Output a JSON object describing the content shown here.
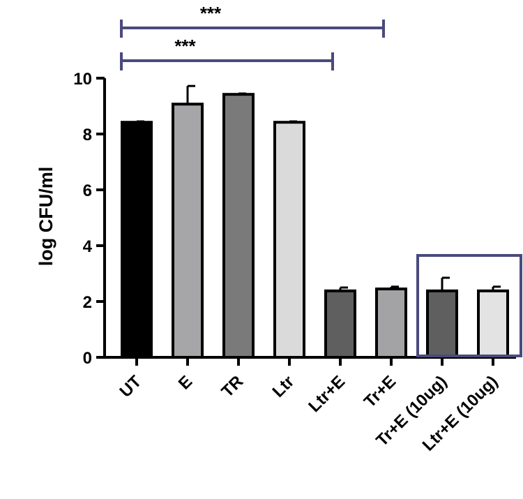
{
  "chart_data": {
    "type": "bar",
    "ylabel": "log CFU/ml",
    "xlabel": "",
    "title": "",
    "ylim": [
      0,
      10
    ],
    "yticks": [
      0,
      2,
      4,
      6,
      8,
      10
    ],
    "categories": [
      "UT",
      "E",
      "TR",
      "Ltr",
      "Ltr+E",
      "Tr+E",
      "Tr+E (10ug)",
      "Ltr+E (10ug)"
    ],
    "values": [
      8.42,
      9.07,
      9.42,
      8.42,
      2.38,
      2.45,
      2.38,
      2.38
    ],
    "errors": [
      0.03,
      0.65,
      0.03,
      0.03,
      0.12,
      0.08,
      0.47,
      0.15
    ],
    "colors": [
      "#000000",
      "#a6a6a8",
      "#7a7a7a",
      "#dadada",
      "#5f5f5f",
      "#a3a3a5",
      "#5f5f5f",
      "#e3e3e3"
    ],
    "annotations": [
      {
        "label": "***",
        "from": "UT",
        "to": "Tr+E",
        "color": "#4a4a7e"
      },
      {
        "label": "***",
        "from": "UT",
        "to": "Ltr+E",
        "color": "#4a4a7e"
      }
    ],
    "highlight_box": {
      "from": "Tr+E (10ug)",
      "to": "Ltr+E (10ug)",
      "color": "#4a4a7e"
    }
  }
}
